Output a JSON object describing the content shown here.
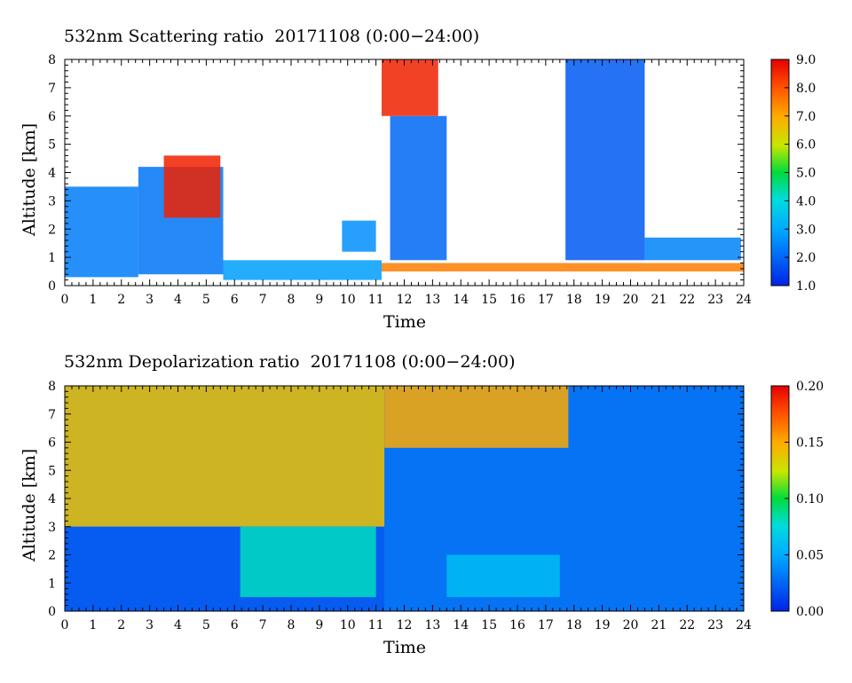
{
  "chart_data": [
    {
      "type": "heatmap",
      "title": "532nm Scattering ratio  20171108 (0:00−24:00)",
      "xlabel": "Time",
      "ylabel": "Altitude [km]",
      "xlim": [
        0,
        24
      ],
      "ylim": [
        0,
        8
      ],
      "x_ticks": [
        "0",
        "1",
        "2",
        "3",
        "4",
        "5",
        "6",
        "7",
        "8",
        "9",
        "10",
        "11",
        "12",
        "13",
        "14",
        "15",
        "16",
        "17",
        "18",
        "19",
        "20",
        "21",
        "22",
        "23",
        "24"
      ],
      "y_ticks": [
        "0",
        "1",
        "2",
        "3",
        "4",
        "5",
        "6",
        "7",
        "8"
      ],
      "colorbar": {
        "min": 1.0,
        "max": 9.0,
        "ticks": [
          "1.0",
          "2.0",
          "3.0",
          "4.0",
          "5.0",
          "6.0",
          "7.0",
          "8.0",
          "9.0"
        ]
      },
      "features": [
        {
          "t0": 0.0,
          "t1": 2.6,
          "base": 0.3,
          "top": 3.5,
          "value": 2.3
        },
        {
          "t0": 2.6,
          "t1": 5.6,
          "base": 0.4,
          "top": 4.2,
          "value": 2.2
        },
        {
          "t0": 3.5,
          "t1": 5.5,
          "base": 2.4,
          "top": 4.6,
          "value": 8.6
        },
        {
          "t0": 5.6,
          "t1": 11.2,
          "base": 0.2,
          "top": 0.9,
          "value": 2.8
        },
        {
          "t0": 9.8,
          "t1": 11.0,
          "base": 1.2,
          "top": 2.3,
          "value": 2.6
        },
        {
          "t0": 11.2,
          "t1": 24.0,
          "base": 0.5,
          "top": 0.8,
          "value": 7.5
        },
        {
          "t0": 11.5,
          "t1": 13.5,
          "base": 0.9,
          "top": 6.0,
          "value": 2.0
        },
        {
          "t0": 11.2,
          "t1": 13.2,
          "base": 6.0,
          "top": 8.0,
          "value": 8.6
        },
        {
          "t0": 17.7,
          "t1": 20.5,
          "base": 0.9,
          "top": 8.0,
          "value": 1.8
        },
        {
          "t0": 20.5,
          "t1": 23.9,
          "base": 0.9,
          "top": 1.7,
          "value": 2.4
        }
      ]
    },
    {
      "type": "heatmap",
      "title": "532nm Depolarization ratio  20171108 (0:00−24:00)",
      "xlabel": "Time",
      "ylabel": "Altitude [km]",
      "xlim": [
        0,
        24
      ],
      "ylim": [
        0,
        8
      ],
      "x_ticks": [
        "0",
        "1",
        "2",
        "3",
        "4",
        "5",
        "6",
        "7",
        "8",
        "9",
        "10",
        "11",
        "12",
        "13",
        "14",
        "15",
        "16",
        "17",
        "18",
        "19",
        "20",
        "21",
        "22",
        "23",
        "24"
      ],
      "y_ticks": [
        "0",
        "1",
        "2",
        "3",
        "4",
        "5",
        "6",
        "7",
        "8"
      ],
      "colorbar": {
        "min": 0.0,
        "max": 0.2,
        "ticks": [
          "0.00",
          "0.05",
          "0.10",
          "0.15",
          "0.20"
        ]
      },
      "features": [
        {
          "t0": 0.0,
          "t1": 11.3,
          "base": 3.0,
          "top": 8.0,
          "value": 0.14
        },
        {
          "t0": 0.0,
          "t1": 11.3,
          "base": 0.0,
          "top": 3.0,
          "value": 0.02
        },
        {
          "t0": 6.2,
          "t1": 11.0,
          "base": 0.5,
          "top": 3.0,
          "value": 0.08
        },
        {
          "t0": 11.3,
          "t1": 24.0,
          "base": 0.0,
          "top": 8.0,
          "value": 0.03
        },
        {
          "t0": 11.3,
          "t1": 17.8,
          "base": 5.8,
          "top": 8.0,
          "value": 0.15
        },
        {
          "t0": 13.5,
          "t1": 17.5,
          "base": 0.5,
          "top": 2.0,
          "value": 0.06
        }
      ]
    }
  ]
}
